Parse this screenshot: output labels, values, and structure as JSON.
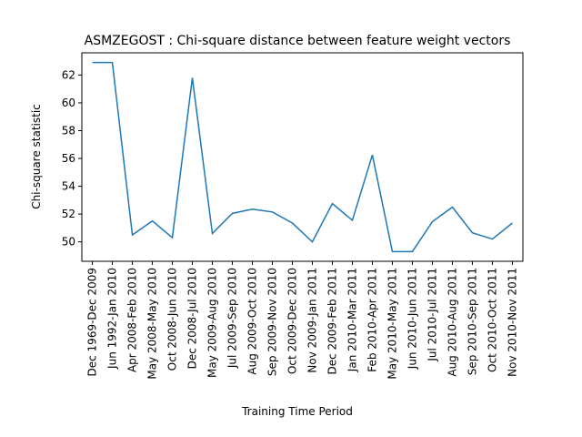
{
  "chart_data": {
    "type": "line",
    "title": "ASMZEGOST : Chi-square distance between feature weight vectors",
    "x_label": "Training Time Period",
    "y_label": "Chi-square statistic",
    "categories": [
      "Dec 1969-Dec 2009",
      "Jun 1992-Jan 2010",
      "Apr 2008-Feb 2010",
      "May 2008-May 2010",
      "Oct 2008-Jun 2010",
      "Dec 2008-Jul 2010",
      "May 2009-Aug 2010",
      "Jul 2009-Sep 2010",
      "Aug 2009-Oct 2010",
      "Sep 2009-Nov 2010",
      "Oct 2009-Dec 2010",
      "Nov 2009-Jan 2011",
      "Dec 2009-Feb 2011",
      "Jan 2010-Mar 2011",
      "Feb 2010-Apr 2011",
      "May 2010-May 2011",
      "Jun 2010-Jun 2011",
      "Jul 2010-Jul 2011",
      "Aug 2010-Aug 2011",
      "Sep 2010-Sep 2011",
      "Oct 2010-Oct 2011",
      "Nov 2010-Nov 2011"
    ],
    "values": [
      62.9,
      62.9,
      50.5,
      51.5,
      50.3,
      61.8,
      50.6,
      52.05,
      52.35,
      52.15,
      51.35,
      50.0,
      52.75,
      51.55,
      56.25,
      49.3,
      49.3,
      51.45,
      52.5,
      50.65,
      50.2,
      51.35
    ],
    "color": "#1f77b4",
    "ylim": [
      48.6,
      63.6
    ],
    "yticks": [
      50,
      52,
      54,
      56,
      58,
      60,
      62
    ]
  }
}
